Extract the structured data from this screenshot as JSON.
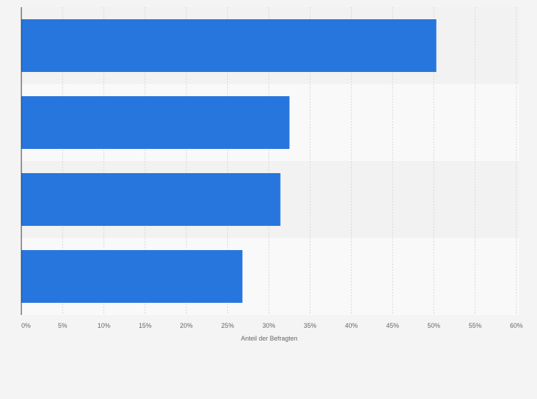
{
  "chart_data": {
    "type": "bar",
    "orientation": "horizontal",
    "categories": [
      "",
      "",
      "",
      ""
    ],
    "values": [
      50.3,
      32.5,
      31.4,
      26.8
    ],
    "xlabel": "Anteil der Befragten",
    "ylabel": "",
    "xlim": [
      0,
      60
    ],
    "x_ticks": [
      0,
      5,
      10,
      15,
      20,
      25,
      30,
      35,
      40,
      45,
      50,
      55,
      60
    ],
    "tick_labels": [
      "0%",
      "5%",
      "10%",
      "15%",
      "20%",
      "25%",
      "30%",
      "35%",
      "40%",
      "45%",
      "50%",
      "55%",
      "60%"
    ],
    "grid": true,
    "legend": "none",
    "bar_color": "#2776dd"
  }
}
